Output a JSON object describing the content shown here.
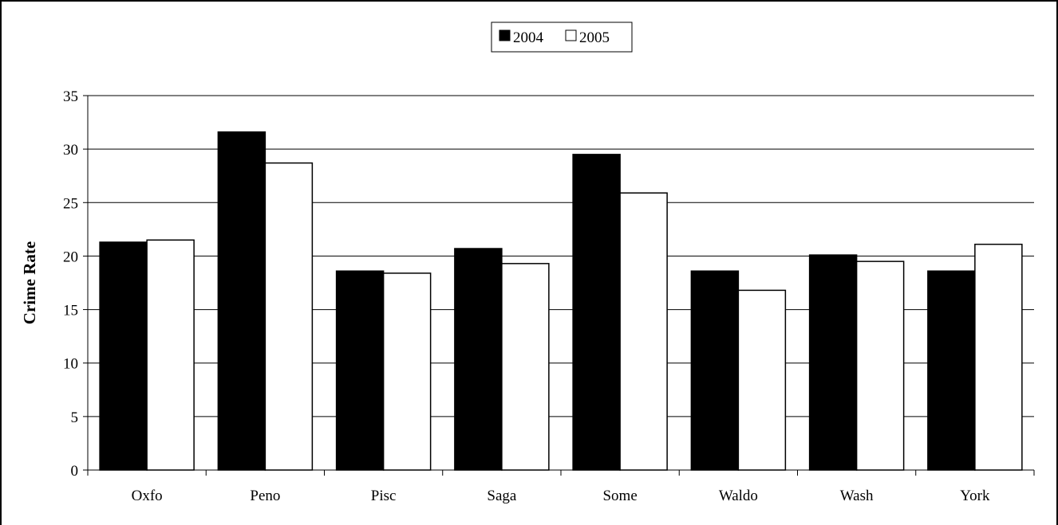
{
  "chart_data": {
    "type": "bar",
    "title": "",
    "xlabel": "",
    "ylabel": "Crime Rate",
    "categories": [
      "Oxfo",
      "Peno",
      "Pisc",
      "Saga",
      "Some",
      "Waldo",
      "Wash",
      "York"
    ],
    "series": [
      {
        "name": "2004",
        "color": "#000000",
        "values": [
          21.3,
          31.6,
          18.6,
          20.7,
          29.5,
          18.6,
          20.1,
          18.6
        ]
      },
      {
        "name": "2005",
        "color": "#ffffff",
        "values": [
          21.5,
          28.7,
          18.4,
          19.3,
          25.9,
          16.8,
          19.5,
          21.1
        ]
      }
    ],
    "ylim": [
      0,
      35
    ],
    "yticks": [
      0,
      5,
      10,
      15,
      20,
      25,
      30,
      35
    ],
    "grid": "horizontal",
    "legend_position": "top-center"
  }
}
